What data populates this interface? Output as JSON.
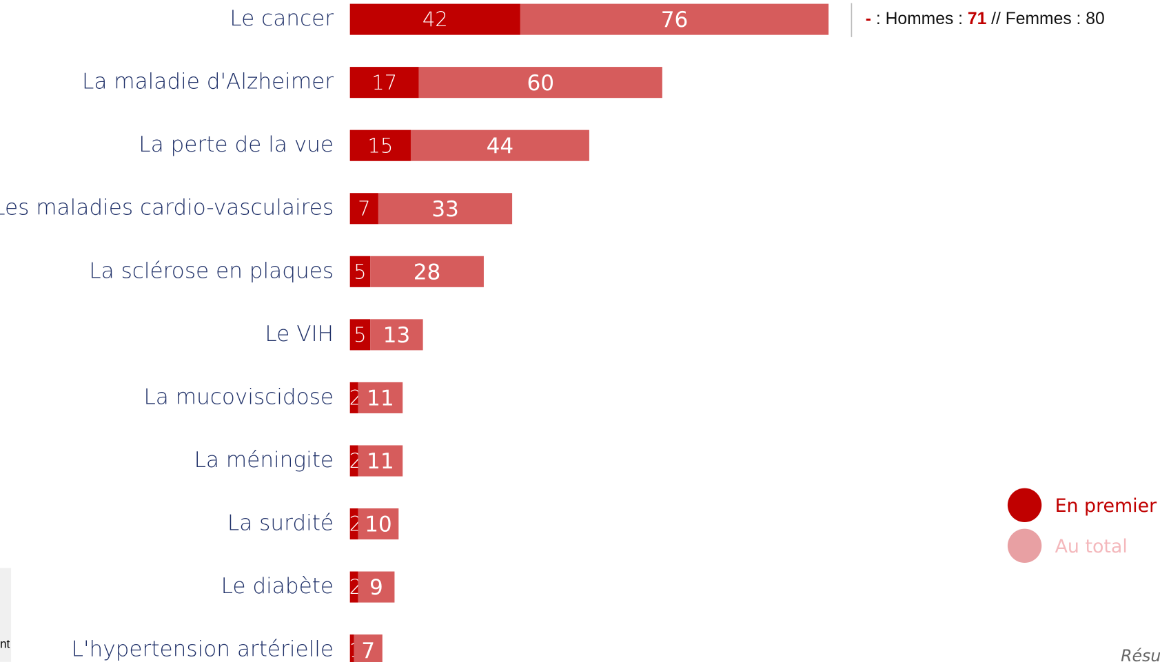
{
  "chart_data": {
    "type": "bar_stacked_horizontal",
    "categories": [
      "Le cancer",
      "La maladie d'Alzheimer",
      "La perte de la vue",
      "Les maladies cardio-vasculaires",
      "La sclérose en plaques",
      "Le VIH",
      "La mucoviscidose",
      "La méningite",
      "La surdité",
      "Le diabète",
      "L'hypertension artérielle"
    ],
    "series": [
      {
        "name": "En premier",
        "color": "#c00000",
        "values": [
          42,
          17,
          15,
          7,
          5,
          5,
          2,
          2,
          2,
          2,
          1
        ]
      },
      {
        "name": "Au total",
        "color": "#d65c5c",
        "legend_color": "#e8a0a3",
        "values": [
          76,
          60,
          44,
          33,
          28,
          13,
          11,
          11,
          10,
          9,
          7
        ]
      }
    ],
    "note": [
      "-",
      " : Hommes : ",
      "71",
      " // Femmes : 80"
    ],
    "fragments": [
      "nt",
      "Résu"
    ]
  }
}
